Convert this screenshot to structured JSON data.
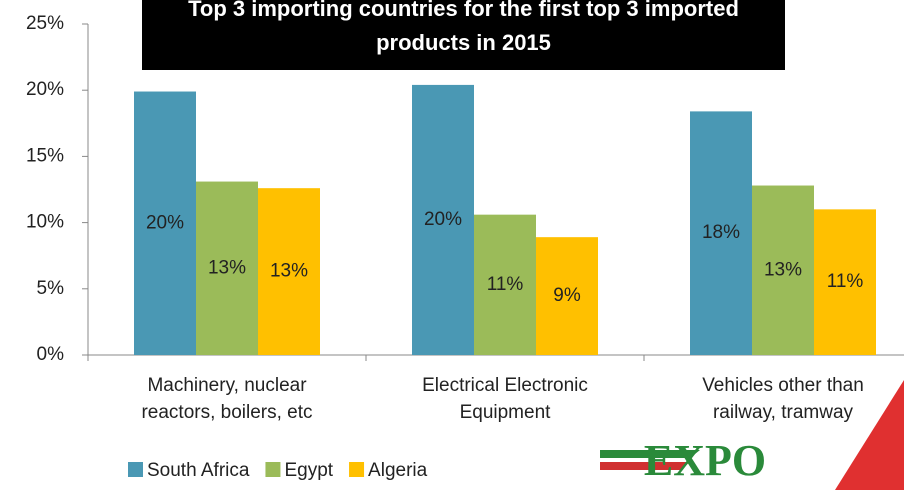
{
  "chart_data": {
    "type": "bar",
    "title": "Top 3 importing countries for the first top 3 imported products in 2015",
    "categories": [
      "Machinery, nuclear\nreactors, boilers,  etc",
      "Electrical Electronic\nEquipment",
      "Vehicles other than\nrailway, tramway"
    ],
    "series": [
      {
        "name": "South Africa",
        "color": "#4a98b4",
        "values": [
          19.9,
          20.4,
          18.4
        ],
        "value_labels": [
          "20%",
          "20%",
          "18%"
        ]
      },
      {
        "name": "Egypt",
        "color": "#9bbb59",
        "values": [
          13.1,
          10.6,
          12.8
        ],
        "value_labels": [
          "13%",
          "11%",
          "13%"
        ]
      },
      {
        "name": "Algeria",
        "color": "#ffc000",
        "values": [
          12.6,
          8.9,
          11.0
        ],
        "value_labels": [
          "13%",
          "9%",
          "11%"
        ]
      }
    ],
    "ylim": [
      0,
      25
    ],
    "yticks": [
      {
        "value": 0,
        "label": "0%"
      },
      {
        "value": 5,
        "label": "5%"
      },
      {
        "value": 10,
        "label": "10%"
      },
      {
        "value": 15,
        "label": "15%"
      },
      {
        "value": 20,
        "label": "20%"
      },
      {
        "value": 25,
        "label": "25%"
      }
    ],
    "legend": "bottom",
    "logo_text": "EXPO"
  }
}
